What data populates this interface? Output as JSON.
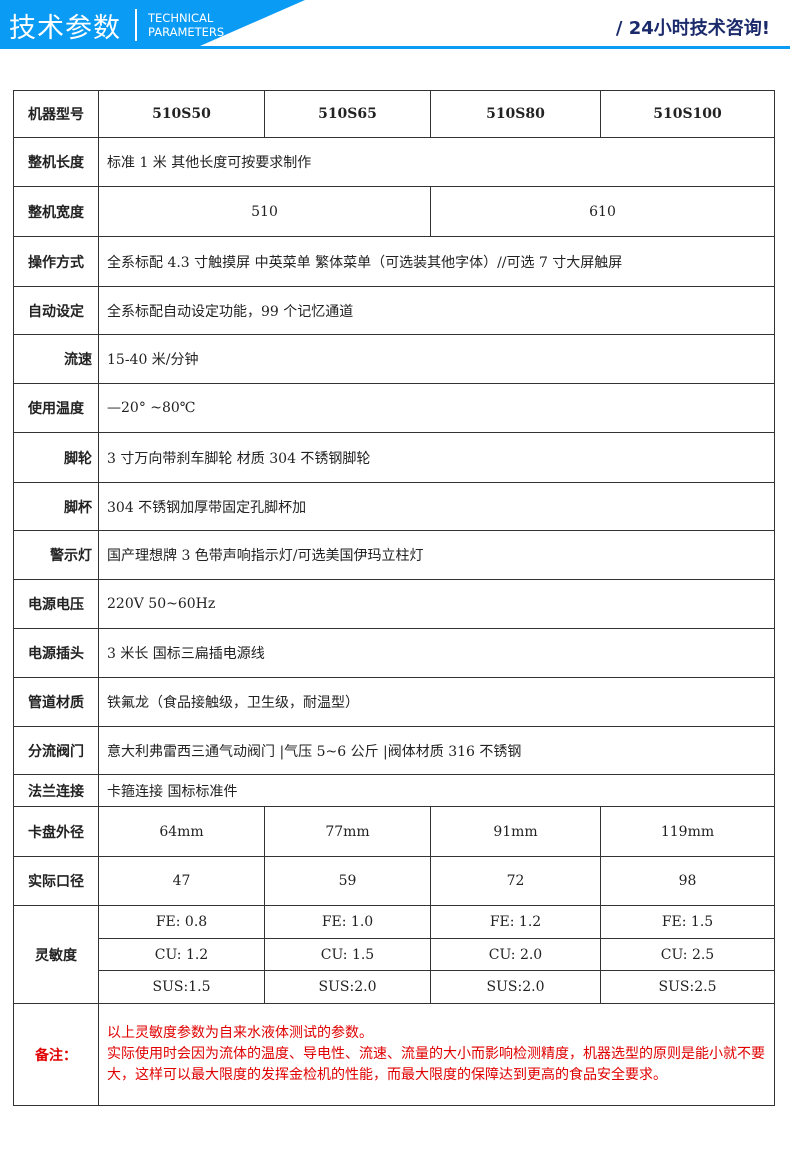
{
  "header": {
    "title": "技术参数",
    "subtitle_line1": "TECHNICAL",
    "subtitle_line2": "PARAMETERS",
    "hotline": "/ 24小时技术咨询!",
    "accent": "#0a9bf5"
  },
  "table": {
    "model_label": "机器型号",
    "models": [
      "510S50",
      "510S65",
      "510S80",
      "510S100"
    ],
    "length": {
      "label": "整机长度",
      "value": "标准 1 米   其他长度可按要求制作"
    },
    "width": {
      "label": "整机宽度",
      "values": [
        "510",
        "610"
      ]
    },
    "operation": {
      "label": "操作方式",
      "value": "全系标配 4.3 寸触摸屏 中英菜单 繁体菜单（可选装其他字体）//可选 7 寸大屏触屏"
    },
    "auto": {
      "label": "自动设定",
      "value": "全系标配自动设定功能，99 个记忆通道"
    },
    "speed": {
      "label": "流速",
      "value": "15-40 米/分钟"
    },
    "temp": {
      "label": "使用温度",
      "value": "—20° ~80℃"
    },
    "caster": {
      "label": "脚轮",
      "value": "3 寸万向带刹车脚轮 材质 304 不锈钢脚轮"
    },
    "cup": {
      "label": "脚杯",
      "value": "304 不锈钢加厚带固定孔脚杯加"
    },
    "lamp": {
      "label": "警示灯",
      "value": "国产理想牌 3 色带声响指示灯/可选美国伊玛立柱灯"
    },
    "voltage": {
      "label": "电源电压",
      "value": "220V 50~60Hz"
    },
    "plug": {
      "label": "电源插头",
      "value": "3 米长 国标三扁插电源线"
    },
    "pipe": {
      "label": "管道材质",
      "value": "铁氟龙（食品接触级，卫生级，耐温型）"
    },
    "valve": {
      "label": "分流阀门",
      "value": "意大利弗雷西三通气动阀门 |气压 5~6 公斤 |阀体材质 316 不锈钢"
    },
    "flange": {
      "label": "法兰连接",
      "value": "卡箍连接 国标标准件"
    },
    "chuck": {
      "label": "卡盘外径",
      "values": [
        "64mm",
        "77mm",
        "91mm",
        "119mm"
      ]
    },
    "bore": {
      "label": "实际口径",
      "values": [
        "47",
        "59",
        "72",
        "98"
      ]
    },
    "sensitivity": {
      "label": "灵敏度",
      "fe": [
        "FE: 0.8",
        "FE: 1.0",
        "FE: 1.2",
        "FE: 1.5"
      ],
      "cu": [
        "CU: 1.2",
        "CU: 1.5",
        "CU: 2.0",
        "CU: 2.5"
      ],
      "sus": [
        "SUS:1.5",
        "SUS:2.0",
        "SUS:2.0",
        "SUS:2.5"
      ]
    },
    "note": {
      "label": "备注：",
      "line1": "以上灵敏度参数为自来水液体测试的参数。",
      "line2": "实际使用时会因为流体的温度、导电性、流速、流量的大小而影响检测精度，机器选型的原则是能小就不要大，这样可以最大限度的发挥金检机的性能，而最大限度的保障达到更高的食品安全要求。",
      "color": "#e00000"
    }
  }
}
